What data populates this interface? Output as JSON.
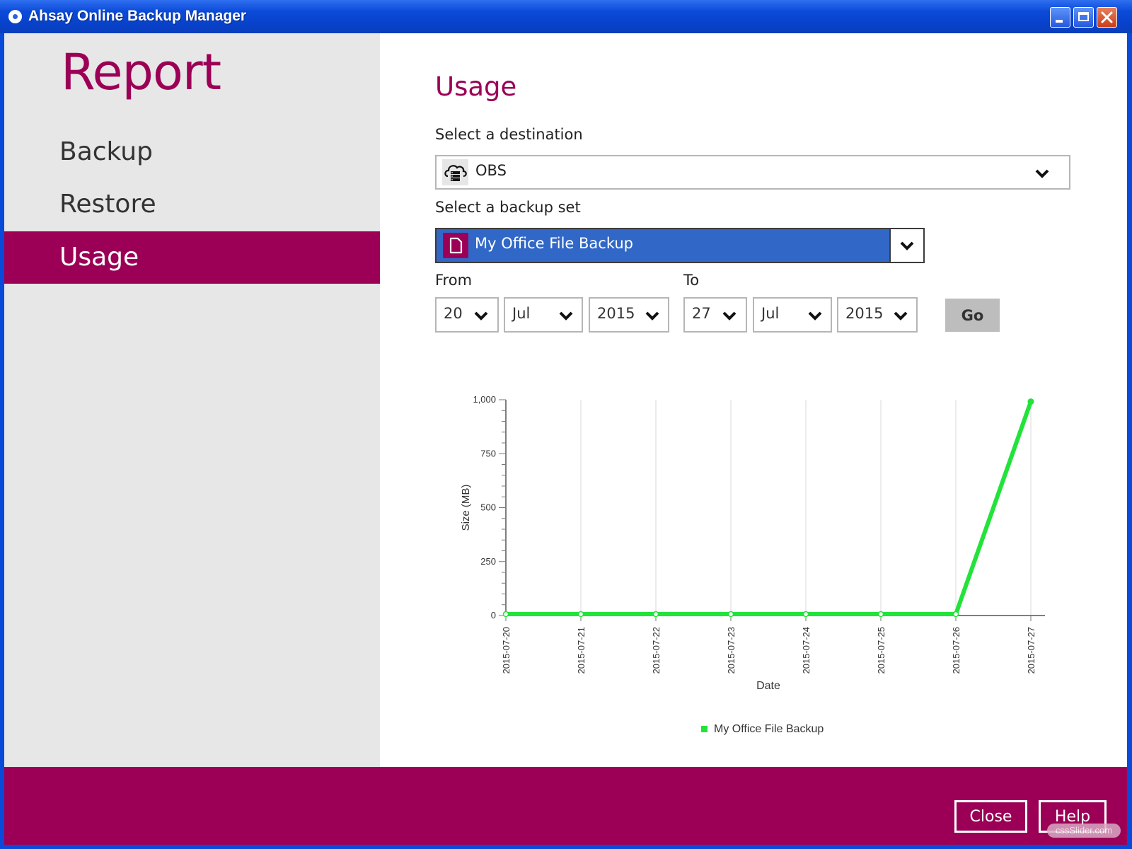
{
  "window": {
    "title": "Ahsay Online Backup Manager"
  },
  "sidebar": {
    "heading": "Report",
    "items": [
      {
        "label": "Backup"
      },
      {
        "label": "Restore"
      },
      {
        "label": "Usage",
        "active": true
      }
    ]
  },
  "main": {
    "title": "Usage",
    "destination": {
      "label": "Select a destination",
      "value": "OBS",
      "icon": "cloud-server-icon"
    },
    "backup_set": {
      "label": "Select a backup set",
      "value": "My Office File Backup",
      "icon": "file-icon"
    },
    "from": {
      "label": "From",
      "day": "20",
      "month": "Jul",
      "year": "2015"
    },
    "to": {
      "label": "To",
      "day": "27",
      "month": "Jul",
      "year": "2015"
    },
    "go_label": "Go"
  },
  "footer": {
    "close_label": "Close",
    "help_label": "Help"
  },
  "watermark": "cssSlider.com",
  "colors": {
    "brand": "#9b0056",
    "series": "#22e33a",
    "selected": "#3168c8"
  },
  "chart_data": {
    "type": "line",
    "xlabel": "Date",
    "ylabel": "Size (MB)",
    "ylim": [
      0,
      1000
    ],
    "yticks": [
      0,
      250,
      500,
      750,
      1000
    ],
    "ytick_labels": [
      "0",
      "250",
      "500",
      "750",
      "1,000"
    ],
    "categories": [
      "2015-07-20",
      "2015-07-21",
      "2015-07-22",
      "2015-07-23",
      "2015-07-24",
      "2015-07-25",
      "2015-07-26",
      "2015-07-27"
    ],
    "series": [
      {
        "name": "My Office File Backup",
        "color": "#22e33a",
        "values": [
          0,
          0,
          0,
          0,
          0,
          0,
          0,
          985
        ]
      }
    ],
    "grid": "vertical",
    "legend": "bottom"
  }
}
